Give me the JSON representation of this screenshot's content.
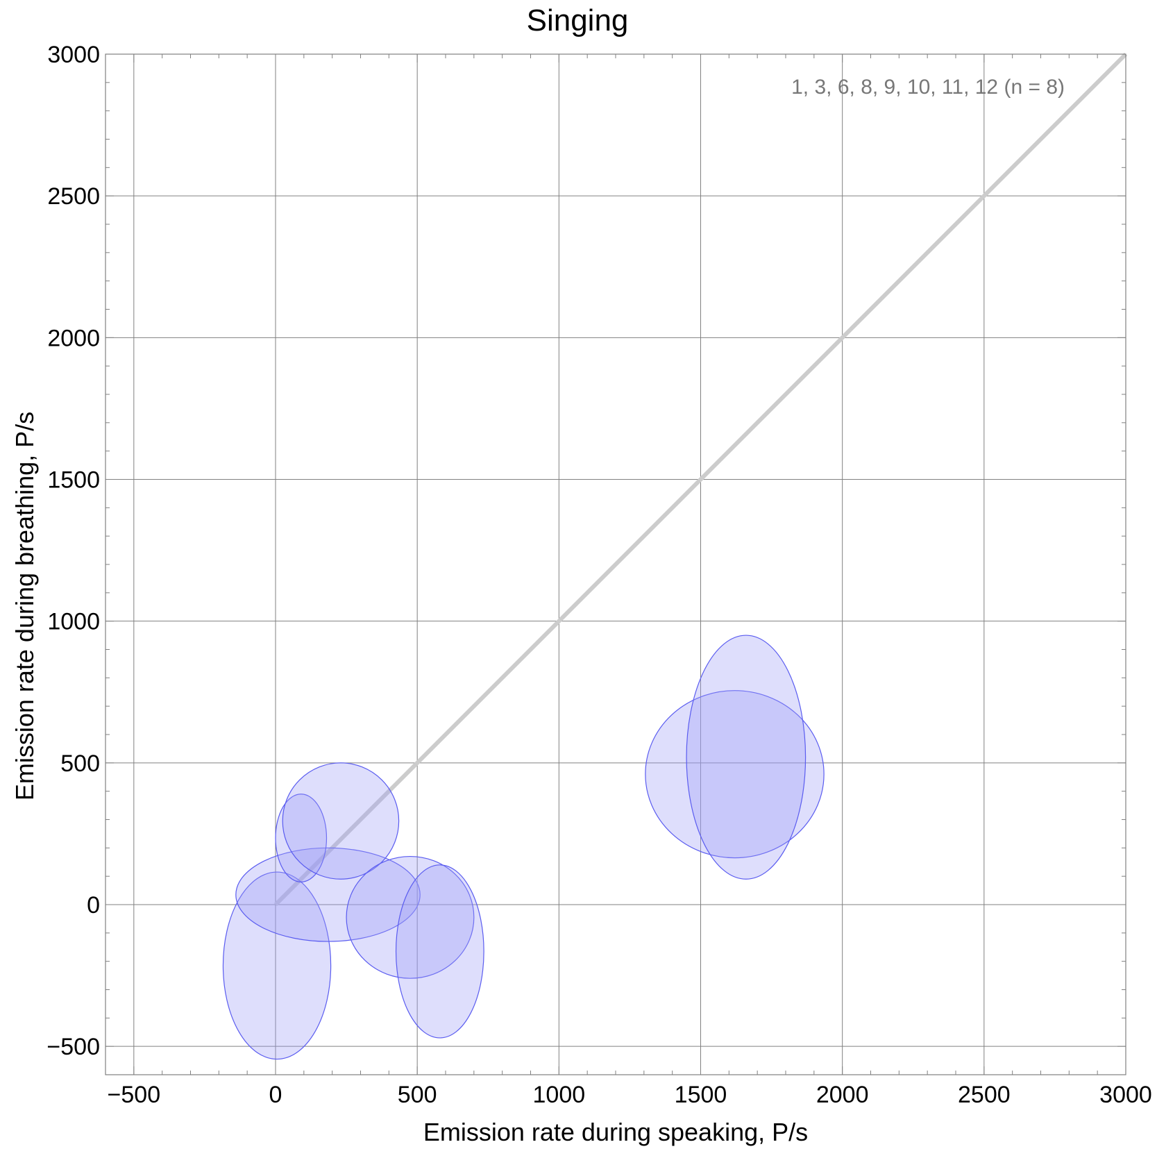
{
  "chart_data": {
    "type": "scatter",
    "title": "Singing",
    "xlabel": "Emission rate during speaking,  P/s",
    "ylabel": "Emission rate during breathing,  P/s",
    "xlim": [
      -600,
      3000
    ],
    "ylim": [
      -600,
      3000
    ],
    "xticks": [
      -500,
      0,
      500,
      1000,
      1500,
      2000,
      2500,
      3000
    ],
    "yticks": [
      -500,
      0,
      500,
      1000,
      1500,
      2000,
      2500,
      3000
    ],
    "xtick_labels": [
      "−500",
      "0",
      "500",
      "1000",
      "1500",
      "2000",
      "2500",
      "3000"
    ],
    "ytick_labels": [
      "−500",
      "0",
      "500",
      "1000",
      "1500",
      "2000",
      "2500",
      "3000"
    ],
    "grid": true,
    "annotation": "1, 3, 6, 8, 9, 10, 11, 12  (n = 8)",
    "reference_line": {
      "from": [
        0,
        0
      ],
      "to": [
        3000,
        3000
      ],
      "color": "#cccccc"
    },
    "colors": {
      "ellipse_fill": "#9a9cf5",
      "ellipse_stroke": "#5a5cf0",
      "grid": "#808080"
    },
    "ellipses": [
      {
        "cx": 5,
        "cy": -215,
        "rx": 190,
        "ry": 330
      },
      {
        "cx": 185,
        "cy": 35,
        "rx": 325,
        "ry": 165
      },
      {
        "cx": 90,
        "cy": 235,
        "rx": 90,
        "ry": 155
      },
      {
        "cx": 230,
        "cy": 295,
        "rx": 205,
        "ry": 205
      },
      {
        "cx": 475,
        "cy": -45,
        "rx": 225,
        "ry": 215
      },
      {
        "cx": 580,
        "cy": -165,
        "rx": 155,
        "ry": 305
      },
      {
        "cx": 1620,
        "cy": 460,
        "rx": 315,
        "ry": 295
      },
      {
        "cx": 1660,
        "cy": 520,
        "rx": 210,
        "ry": 430
      }
    ]
  }
}
